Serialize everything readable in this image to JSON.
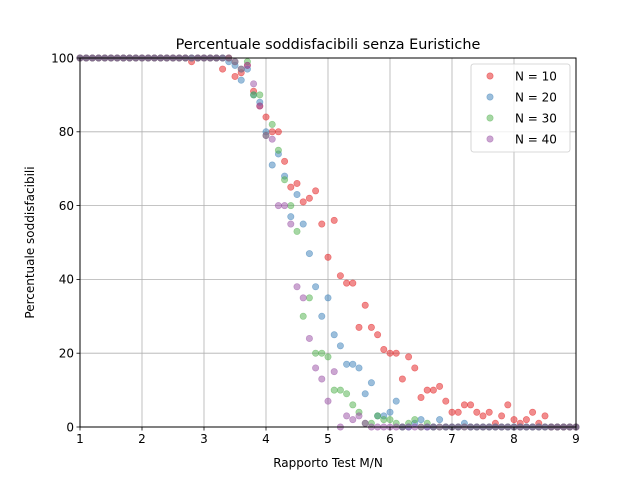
{
  "chart_data": {
    "type": "scatter",
    "title": "Percentuale soddisfacibili senza Euristiche",
    "xlabel": "Rapporto Test M/N",
    "ylabel": "Percentuale soddisfacibili",
    "xlim": [
      1,
      9
    ],
    "ylim": [
      0,
      100
    ],
    "xticks": [
      "1",
      "2",
      "3",
      "4",
      "5",
      "6",
      "7",
      "8",
      "9"
    ],
    "yticks": [
      "0",
      "20",
      "40",
      "60",
      "80",
      "100"
    ],
    "grid": true,
    "legend_position": "top-right",
    "series": [
      {
        "name": "N = 10",
        "color": "#e41a1c",
        "x": [
          1.0,
          1.1,
          1.2,
          1.3,
          1.4,
          1.5,
          1.6,
          1.7,
          1.8,
          1.9,
          2.0,
          2.1,
          2.2,
          2.3,
          2.4,
          2.5,
          2.6,
          2.7,
          2.8,
          2.9,
          3.0,
          3.1,
          3.2,
          3.3,
          3.4,
          3.5,
          3.6,
          3.7,
          3.8,
          3.9,
          4.0,
          4.1,
          4.2,
          4.3,
          4.4,
          4.5,
          4.6,
          4.7,
          4.8,
          4.9,
          5.0,
          5.1,
          5.2,
          5.3,
          5.4,
          5.5,
          5.6,
          5.7,
          5.8,
          5.9,
          6.0,
          6.1,
          6.2,
          6.3,
          6.4,
          6.5,
          6.6,
          6.7,
          6.8,
          6.9,
          7.0,
          7.1,
          7.2,
          7.3,
          7.4,
          7.5,
          7.6,
          7.7,
          7.8,
          7.9,
          8.0,
          8.1,
          8.2,
          8.3,
          8.4,
          8.5,
          8.6,
          8.7,
          8.8,
          8.9,
          9.0
        ],
        "y": [
          100,
          100,
          100,
          100,
          100,
          100,
          100,
          100,
          100,
          100,
          100,
          100,
          100,
          100,
          100,
          100,
          100,
          100,
          99,
          100,
          100,
          100,
          100,
          97,
          100,
          95,
          96,
          98,
          91,
          87,
          84,
          80,
          80,
          72,
          65,
          66,
          61,
          62,
          64,
          55,
          46,
          56,
          41,
          39,
          39,
          27,
          33,
          27,
          25,
          21,
          20,
          20,
          13,
          19,
          16,
          8,
          10,
          10,
          11,
          7,
          4,
          4,
          6,
          6,
          4,
          3,
          4,
          1,
          3,
          6,
          2,
          1,
          2,
          4,
          1,
          3,
          0,
          0,
          0,
          0,
          0
        ]
      },
      {
        "name": "N = 20",
        "color": "#377eb8",
        "x": [
          1.0,
          1.1,
          1.2,
          1.3,
          1.4,
          1.5,
          1.6,
          1.7,
          1.8,
          1.9,
          2.0,
          2.1,
          2.2,
          2.3,
          2.4,
          2.5,
          2.6,
          2.7,
          2.8,
          2.9,
          3.0,
          3.1,
          3.2,
          3.3,
          3.4,
          3.5,
          3.6,
          3.7,
          3.8,
          3.9,
          4.0,
          4.1,
          4.2,
          4.3,
          4.4,
          4.5,
          4.6,
          4.7,
          4.8,
          4.9,
          5.0,
          5.1,
          5.2,
          5.3,
          5.4,
          5.5,
          5.6,
          5.7,
          5.8,
          5.9,
          6.0,
          6.1,
          6.2,
          6.3,
          6.4,
          6.5,
          6.6,
          6.7,
          6.8,
          6.9,
          7.0,
          7.1,
          7.2,
          7.3,
          7.4,
          7.5,
          7.6,
          7.7,
          7.8,
          7.9,
          8.0,
          8.1,
          8.2,
          8.3,
          8.4,
          8.5,
          8.6,
          8.7,
          8.8,
          8.9,
          9.0
        ],
        "y": [
          100,
          100,
          100,
          100,
          100,
          100,
          100,
          100,
          100,
          100,
          100,
          100,
          100,
          100,
          100,
          100,
          100,
          100,
          100,
          100,
          100,
          100,
          100,
          100,
          99,
          98,
          94,
          97,
          90,
          88,
          80,
          71,
          74,
          68,
          57,
          63,
          55,
          47,
          38,
          30,
          35,
          25,
          22,
          17,
          17,
          16,
          9,
          12,
          3,
          3,
          4,
          7,
          0,
          0,
          1,
          2,
          0,
          0,
          2,
          0,
          0,
          0,
          1,
          0,
          0,
          0,
          0,
          0,
          0,
          0,
          0,
          0,
          0,
          0,
          0,
          0,
          0,
          0,
          0,
          0,
          0
        ]
      },
      {
        "name": "N = 30",
        "color": "#4daf4a",
        "x": [
          1.0,
          1.1,
          1.2,
          1.3,
          1.4,
          1.5,
          1.6,
          1.7,
          1.8,
          1.9,
          2.0,
          2.1,
          2.2,
          2.3,
          2.4,
          2.5,
          2.6,
          2.7,
          2.8,
          2.9,
          3.0,
          3.1,
          3.2,
          3.3,
          3.4,
          3.5,
          3.6,
          3.7,
          3.8,
          3.9,
          4.0,
          4.1,
          4.2,
          4.3,
          4.4,
          4.5,
          4.6,
          4.7,
          4.8,
          4.9,
          5.0,
          5.1,
          5.2,
          5.3,
          5.4,
          5.5,
          5.6,
          5.7,
          5.8,
          5.9,
          6.0,
          6.1,
          6.2,
          6.3,
          6.4,
          6.5,
          6.6,
          6.7,
          6.8,
          6.9,
          7.0,
          7.1,
          7.2,
          7.3,
          7.4,
          7.5,
          7.6,
          7.7,
          7.8,
          7.9,
          8.0,
          8.1,
          8.2,
          8.3,
          8.4,
          8.5,
          8.6,
          8.7,
          8.8,
          8.9,
          9.0
        ],
        "y": [
          100,
          100,
          100,
          100,
          100,
          100,
          100,
          100,
          100,
          100,
          100,
          100,
          100,
          100,
          100,
          100,
          100,
          100,
          100,
          100,
          100,
          100,
          100,
          100,
          100,
          99,
          97,
          99,
          90,
          90,
          79,
          82,
          75,
          67,
          60,
          53,
          30,
          35,
          20,
          20,
          19,
          10,
          10,
          9,
          6,
          4,
          1,
          1,
          3,
          2,
          2,
          1,
          0,
          1,
          2,
          0,
          1,
          0,
          0,
          0,
          0,
          0,
          0,
          0,
          0,
          0,
          0,
          0,
          0,
          0,
          0,
          0,
          0,
          0,
          0,
          0,
          0,
          0,
          0,
          0,
          0
        ]
      },
      {
        "name": "N = 40",
        "color": "#984ea3",
        "x": [
          1.0,
          1.1,
          1.2,
          1.3,
          1.4,
          1.5,
          1.6,
          1.7,
          1.8,
          1.9,
          2.0,
          2.1,
          2.2,
          2.3,
          2.4,
          2.5,
          2.6,
          2.7,
          2.8,
          2.9,
          3.0,
          3.1,
          3.2,
          3.3,
          3.4,
          3.5,
          3.6,
          3.7,
          3.8,
          3.9,
          4.0,
          4.1,
          4.2,
          4.3,
          4.4,
          4.5,
          4.6,
          4.7,
          4.8,
          4.9,
          5.0,
          5.1,
          5.2,
          5.3,
          5.4,
          5.5,
          5.6,
          5.7,
          5.8,
          5.9,
          6.0,
          6.1,
          6.2,
          6.3,
          6.4,
          6.5,
          6.6,
          6.7,
          6.8,
          6.9,
          7.0,
          7.1,
          7.2,
          7.3,
          7.4,
          7.5,
          7.6,
          7.7,
          7.8,
          7.9,
          8.0,
          8.1,
          8.2,
          8.3,
          8.4,
          8.5,
          8.6,
          8.7,
          8.8,
          8.9,
          9.0
        ],
        "y": [
          100,
          100,
          100,
          100,
          100,
          100,
          100,
          100,
          100,
          100,
          100,
          100,
          100,
          100,
          100,
          100,
          100,
          100,
          100,
          100,
          100,
          100,
          100,
          100,
          100,
          99,
          97,
          98,
          93,
          87,
          79,
          78,
          60,
          60,
          55,
          38,
          35,
          24,
          16,
          13,
          7,
          15,
          0,
          3,
          2,
          3,
          1,
          0,
          0,
          0,
          0,
          0,
          0,
          0,
          0,
          0,
          0,
          0,
          0,
          0,
          0,
          0,
          0,
          0,
          0,
          0,
          0,
          0,
          0,
          0,
          0,
          0,
          0,
          0,
          0,
          0,
          0,
          0,
          0,
          0,
          0
        ]
      }
    ]
  }
}
